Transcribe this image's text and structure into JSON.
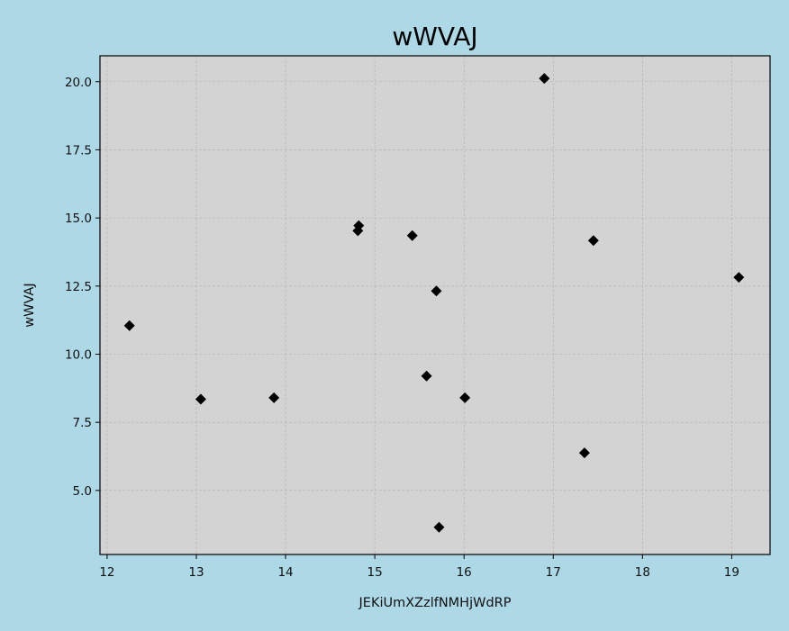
{
  "chart_data": {
    "type": "scatter",
    "title": "wWVAJ",
    "xlabel": "JEKiUmXZzlfNMHjWdRP",
    "ylabel": "wWVAJ",
    "xlim": [
      11.92,
      19.43
    ],
    "ylim": [
      2.65,
      20.95
    ],
    "xticks": [
      12,
      13,
      14,
      15,
      16,
      17,
      18,
      19
    ],
    "xtick_labels": [
      "12",
      "13",
      "14",
      "15",
      "16",
      "17",
      "18",
      "19"
    ],
    "yticks": [
      5.0,
      7.5,
      10.0,
      12.5,
      15.0,
      17.5,
      20.0
    ],
    "ytick_labels": [
      "5.0",
      "7.5",
      "10.0",
      "12.5",
      "15.0",
      "17.5",
      "20.0"
    ],
    "grid": true,
    "marker": "diamond",
    "colors": {
      "figure_background": "#add8e6",
      "plot_background": "#d3d3d3",
      "marker": "#000000",
      "grid": "#b0b0b0"
    },
    "points": [
      {
        "x": 12.25,
        "y": 11.05
      },
      {
        "x": 13.05,
        "y": 8.35
      },
      {
        "x": 13.87,
        "y": 8.4
      },
      {
        "x": 14.82,
        "y": 14.72
      },
      {
        "x": 14.81,
        "y": 14.53
      },
      {
        "x": 15.42,
        "y": 14.35
      },
      {
        "x": 15.69,
        "y": 12.32
      },
      {
        "x": 15.58,
        "y": 9.2
      },
      {
        "x": 16.01,
        "y": 8.4
      },
      {
        "x": 15.72,
        "y": 3.65
      },
      {
        "x": 16.9,
        "y": 20.12
      },
      {
        "x": 17.45,
        "y": 14.17
      },
      {
        "x": 17.35,
        "y": 6.38
      },
      {
        "x": 19.08,
        "y": 12.82
      }
    ]
  }
}
